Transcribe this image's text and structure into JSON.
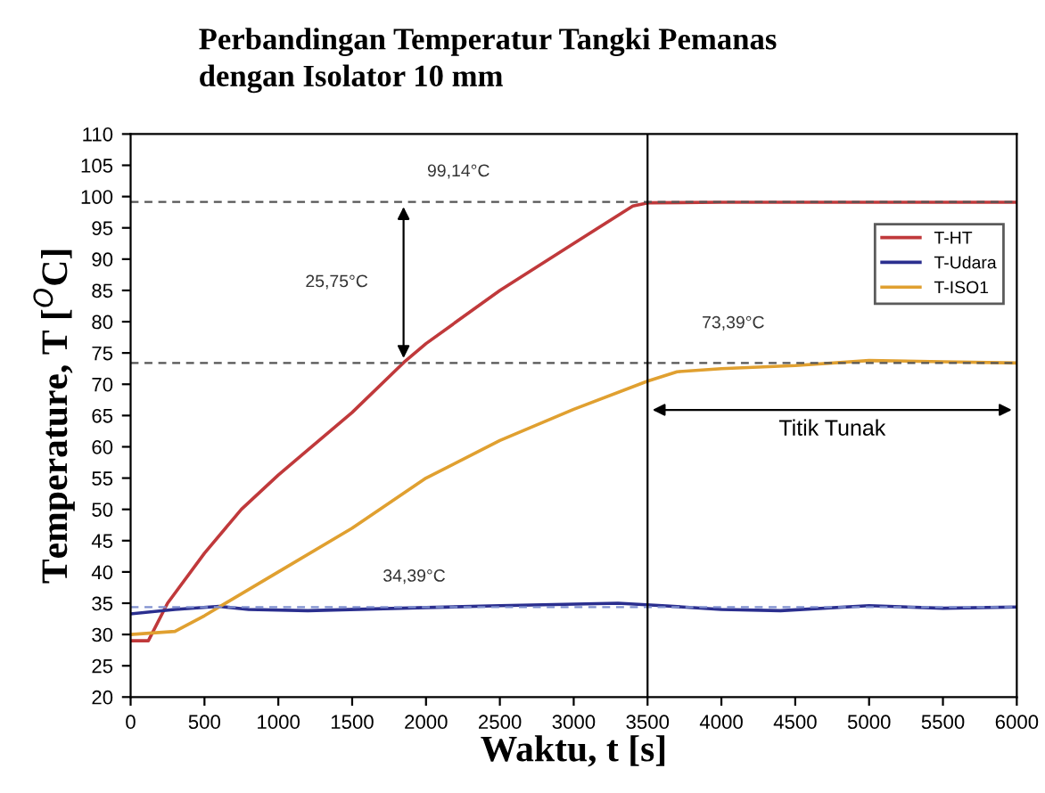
{
  "chart_data": {
    "type": "line",
    "title": "Perbandingan Temperatur Tangki Pemanas\ndengan Isolator 10 mm",
    "xlabel": "Waktu, t [s]",
    "ylabel": "Temperature, T [$^{O}$C]",
    "xlim": [
      0,
      6000
    ],
    "xticks": [
      0,
      500,
      1000,
      1500,
      2000,
      2500,
      3000,
      3500,
      4000,
      4500,
      5000,
      5500,
      6000
    ],
    "ylim": [
      20,
      110
    ],
    "yticks": [
      20,
      25,
      30,
      35,
      40,
      45,
      50,
      55,
      60,
      65,
      70,
      75,
      80,
      85,
      90,
      95,
      100,
      105,
      110
    ],
    "grid": false,
    "legend": "top right",
    "marker": "none",
    "line_style": "solid",
    "series": [
      {
        "name": "T-HT",
        "color": "#c0393b",
        "x": [
          0,
          120,
          250,
          500,
          750,
          1000,
          1500,
          1850,
          2000,
          2500,
          3000,
          3400,
          3500,
          4000,
          5000,
          6000
        ],
        "values": [
          29,
          29,
          35,
          43,
          50,
          55.5,
          65.5,
          73.5,
          76.5,
          85,
          92.5,
          98.5,
          99,
          99.1,
          99.1,
          99.1
        ]
      },
      {
        "name": "T-Udara",
        "color": "#2b2f8f",
        "x": [
          0,
          300,
          600,
          800,
          1200,
          2000,
          2500,
          3300,
          3600,
          4000,
          4400,
          5000,
          5500,
          6000
        ],
        "values": [
          33.3,
          34,
          34.5,
          34,
          33.8,
          34.3,
          34.6,
          35,
          34.6,
          34,
          33.8,
          34.6,
          34.2,
          34.4
        ]
      },
      {
        "name": "T-ISO1",
        "color": "#e0a030",
        "x": [
          0,
          300,
          500,
          1000,
          1500,
          2000,
          2500,
          3000,
          3500,
          3700,
          4000,
          4500,
          5000,
          5500,
          6000
        ],
        "values": [
          30,
          30.5,
          33,
          40,
          47,
          55,
          61,
          66,
          70.5,
          72,
          72.5,
          73,
          73.8,
          73.6,
          73.4
        ]
      }
    ],
    "ref_lines": [
      {
        "axis": "y",
        "value": 99.14,
        "label": "99,14°C",
        "color": "#555555",
        "line_style": "dashed"
      },
      {
        "axis": "y",
        "value": 73.39,
        "label": "73,39°C",
        "color": "#555555",
        "line_style": "dashed"
      },
      {
        "axis": "y",
        "value": 34.39,
        "label": "34,39°C",
        "color": "#8090d0",
        "line_style": "dashed"
      },
      {
        "axis": "x",
        "value": 3500,
        "color": "#000000",
        "line_style": "solid"
      }
    ],
    "annotations": [
      "25,75°C",
      "Titik Tunak"
    ]
  }
}
